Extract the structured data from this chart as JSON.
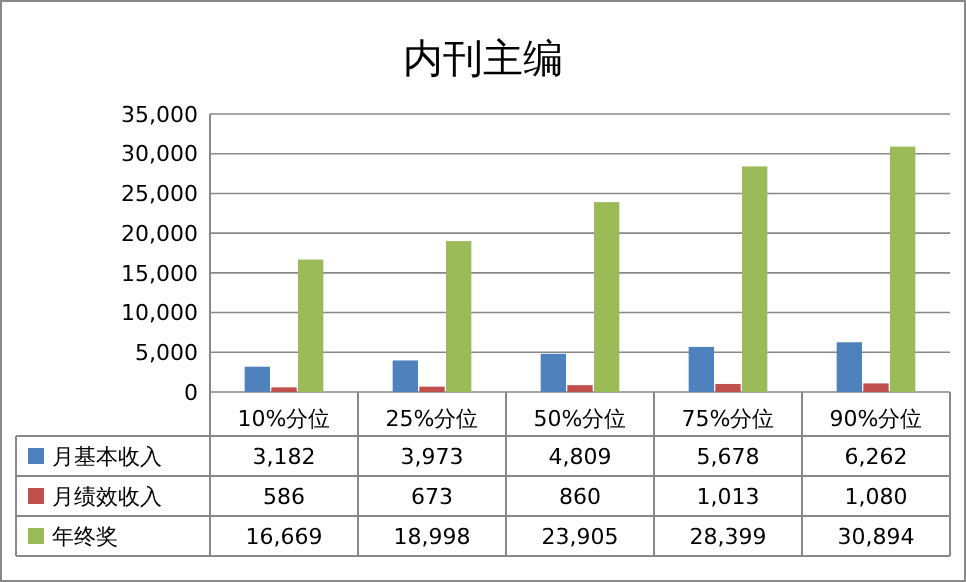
{
  "chart_data": {
    "type": "bar",
    "title": "内刊主编",
    "categories": [
      "10%分位",
      "25%分位",
      "50%分位",
      "75%分位",
      "90%分位"
    ],
    "series": [
      {
        "name": "月基本收入",
        "color": "#4f81bd",
        "values": [
          3182,
          3973,
          4809,
          5678,
          6262
        ],
        "value_labels": [
          "3,182",
          "3,973",
          "4,809",
          "5,678",
          "6,262"
        ]
      },
      {
        "name": "月绩效收入",
        "color": "#c0504d",
        "values": [
          586,
          673,
          860,
          1013,
          1080
        ],
        "value_labels": [
          "586",
          "673",
          "860",
          "1,013",
          "1,080"
        ]
      },
      {
        "name": "年终奖",
        "color": "#9bbb59",
        "values": [
          16669,
          18998,
          23905,
          28399,
          30894
        ],
        "value_labels": [
          "16,669",
          "18,998",
          "23,905",
          "28,399",
          "30,894"
        ]
      }
    ],
    "ylim": [
      0,
      35000
    ],
    "yticks": [
      {
        "value": 0,
        "label": "0"
      },
      {
        "value": 5000,
        "label": "5,000"
      },
      {
        "value": 10000,
        "label": "10,000"
      },
      {
        "value": 15000,
        "label": "15,000"
      },
      {
        "value": 20000,
        "label": "20,000"
      },
      {
        "value": 25000,
        "label": "25,000"
      },
      {
        "value": 30000,
        "label": "30,000"
      },
      {
        "value": 35000,
        "label": "35,000"
      }
    ],
    "grid": "y",
    "legend": "bottom"
  }
}
